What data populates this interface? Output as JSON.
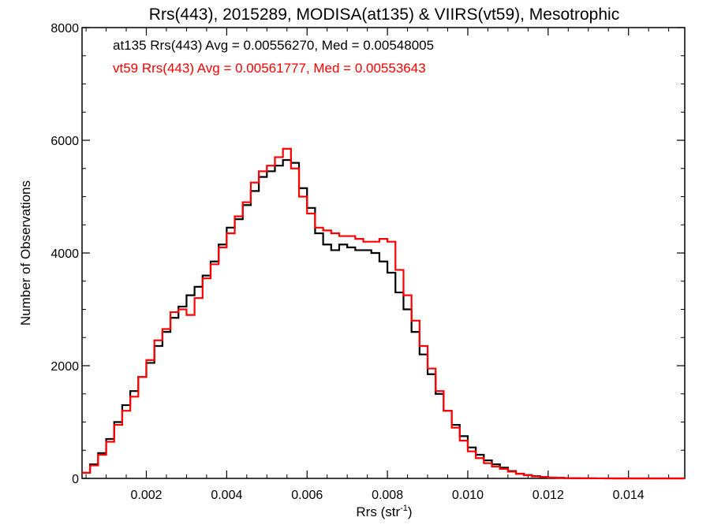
{
  "chart_data": {
    "type": "line",
    "title": "Rrs(443), 2015289, MODISA(at135) & VIIRS(vt59), Mesotrophic",
    "xlabel_main": "Rrs (str",
    "xlabel_sup": "-1",
    "xlabel_close": ")",
    "ylabel": "Number of Observations",
    "xlim": [
      0.0004,
      0.0154
    ],
    "ylim": [
      0,
      8000
    ],
    "x_ticks": [
      0.002,
      0.004,
      0.006,
      0.008,
      0.01,
      0.012,
      0.014
    ],
    "x_tick_labels": [
      "0.002",
      "0.004",
      "0.006",
      "0.008",
      "0.010",
      "0.012",
      "0.014"
    ],
    "y_ticks": [
      0,
      2000,
      4000,
      6000,
      8000
    ],
    "y_tick_labels": [
      "0",
      "2000",
      "4000",
      "6000",
      "8000"
    ],
    "grid": false,
    "legend_position": "top-left",
    "series": [
      {
        "name": "at135 Rrs(443) Avg = 0.00556270, Med = 0.00548005",
        "color": "#000000",
        "x": [
          0.0004,
          0.0006,
          0.0008,
          0.001,
          0.0012,
          0.0014,
          0.0016,
          0.0018,
          0.002,
          0.0022,
          0.0024,
          0.0026,
          0.0028,
          0.003,
          0.0032,
          0.0034,
          0.0036,
          0.0038,
          0.004,
          0.0042,
          0.0044,
          0.0046,
          0.0048,
          0.005,
          0.0052,
          0.0054,
          0.0056,
          0.0058,
          0.006,
          0.0062,
          0.0064,
          0.0066,
          0.0068,
          0.007,
          0.0072,
          0.0074,
          0.0076,
          0.0078,
          0.008,
          0.0082,
          0.0084,
          0.0086,
          0.0088,
          0.009,
          0.0092,
          0.0094,
          0.0096,
          0.0098,
          0.01,
          0.0102,
          0.0104,
          0.0106,
          0.0108,
          0.011,
          0.0112,
          0.0114,
          0.0116,
          0.0118,
          0.012,
          0.0122,
          0.0124,
          0.0126,
          0.0128,
          0.013,
          0.0132,
          0.0134,
          0.0136,
          0.0138,
          0.014,
          0.0142,
          0.0144,
          0.0146,
          0.0148,
          0.015,
          0.0152,
          0.0154
        ],
        "values": [
          100,
          250,
          450,
          700,
          1000,
          1300,
          1550,
          1800,
          2050,
          2350,
          2600,
          2850,
          3050,
          3250,
          3400,
          3600,
          3850,
          4150,
          4450,
          4600,
          4850,
          5100,
          5350,
          5450,
          5550,
          5650,
          5600,
          5150,
          4800,
          4350,
          4150,
          4050,
          4150,
          4100,
          4050,
          4050,
          4000,
          3850,
          3650,
          3300,
          3000,
          2600,
          2200,
          1850,
          1500,
          1200,
          950,
          750,
          550,
          420,
          320,
          250,
          190,
          130,
          85,
          60,
          40,
          25,
          15,
          10,
          6,
          4,
          3,
          2,
          1,
          1,
          0,
          0,
          0,
          0,
          0,
          0,
          0,
          0,
          0,
          0
        ]
      },
      {
        "name": "vt59 Rrs(443) Avg = 0.00561777, Med = 0.00553643",
        "color": "#ff0000",
        "x": [
          0.0004,
          0.0006,
          0.0008,
          0.001,
          0.0012,
          0.0014,
          0.0016,
          0.0018,
          0.002,
          0.0022,
          0.0024,
          0.0026,
          0.0028,
          0.003,
          0.0032,
          0.0034,
          0.0036,
          0.0038,
          0.004,
          0.0042,
          0.0044,
          0.0046,
          0.0048,
          0.005,
          0.0052,
          0.0054,
          0.0056,
          0.0058,
          0.006,
          0.0062,
          0.0064,
          0.0066,
          0.0068,
          0.007,
          0.0072,
          0.0074,
          0.0076,
          0.0078,
          0.008,
          0.0082,
          0.0084,
          0.0086,
          0.0088,
          0.009,
          0.0092,
          0.0094,
          0.0096,
          0.0098,
          0.01,
          0.0102,
          0.0104,
          0.0106,
          0.0108,
          0.011,
          0.0112,
          0.0114,
          0.0116,
          0.0118,
          0.012,
          0.0122,
          0.0124,
          0.0126,
          0.0128,
          0.013,
          0.0132,
          0.0134,
          0.0136,
          0.0138,
          0.014,
          0.0142,
          0.0144,
          0.0146,
          0.0148,
          0.015,
          0.0152,
          0.0154
        ],
        "values": [
          100,
          230,
          420,
          650,
          950,
          1200,
          1450,
          1800,
          2100,
          2450,
          2650,
          2950,
          3000,
          2900,
          3200,
          3550,
          3800,
          4100,
          4350,
          4650,
          4900,
          5250,
          5450,
          5550,
          5700,
          5850,
          5500,
          5000,
          4700,
          4450,
          4400,
          4350,
          4300,
          4300,
          4250,
          4200,
          4200,
          4250,
          4200,
          3700,
          3250,
          2800,
          2350,
          1950,
          1550,
          1200,
          900,
          670,
          480,
          360,
          270,
          210,
          170,
          120,
          80,
          55,
          35,
          22,
          14,
          9,
          5,
          3,
          2,
          1,
          1,
          0,
          0,
          0,
          0,
          0,
          0,
          0,
          0,
          0,
          0,
          0
        ]
      }
    ]
  }
}
